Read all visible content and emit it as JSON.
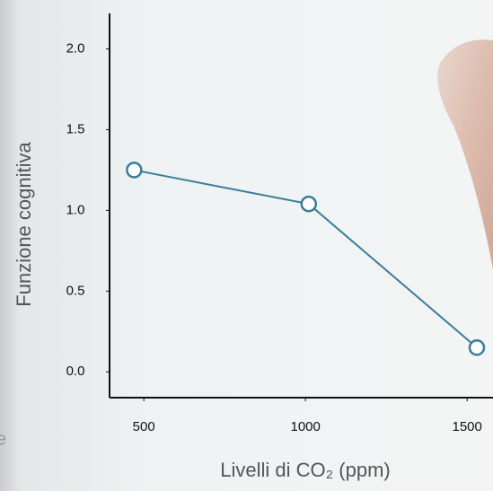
{
  "chart_data": {
    "type": "line",
    "x_label": "Livelli di CO₂ (ppm)",
    "y_label": "Funzione cognitiva",
    "x": [
      470,
      1010,
      1530
    ],
    "series": [
      {
        "color": "#3a7d99",
        "values": [
          1.25,
          1.04,
          0.15
        ]
      }
    ],
    "xlim": [
      394,
      1580
    ],
    "xticks": [
      500,
      1000,
      1500
    ],
    "ylim": [
      -0.16,
      2.22
    ],
    "yticks": [
      {
        "value": 0,
        "label": "0.0"
      },
      {
        "value": 0.5,
        "label": "0.5"
      },
      {
        "value": 1,
        "label": "1.0"
      },
      {
        "value": 1.5,
        "label": "1.5"
      },
      {
        "value": 2,
        "label": "2.0"
      }
    ],
    "annotations": [
      "e"
    ]
  }
}
